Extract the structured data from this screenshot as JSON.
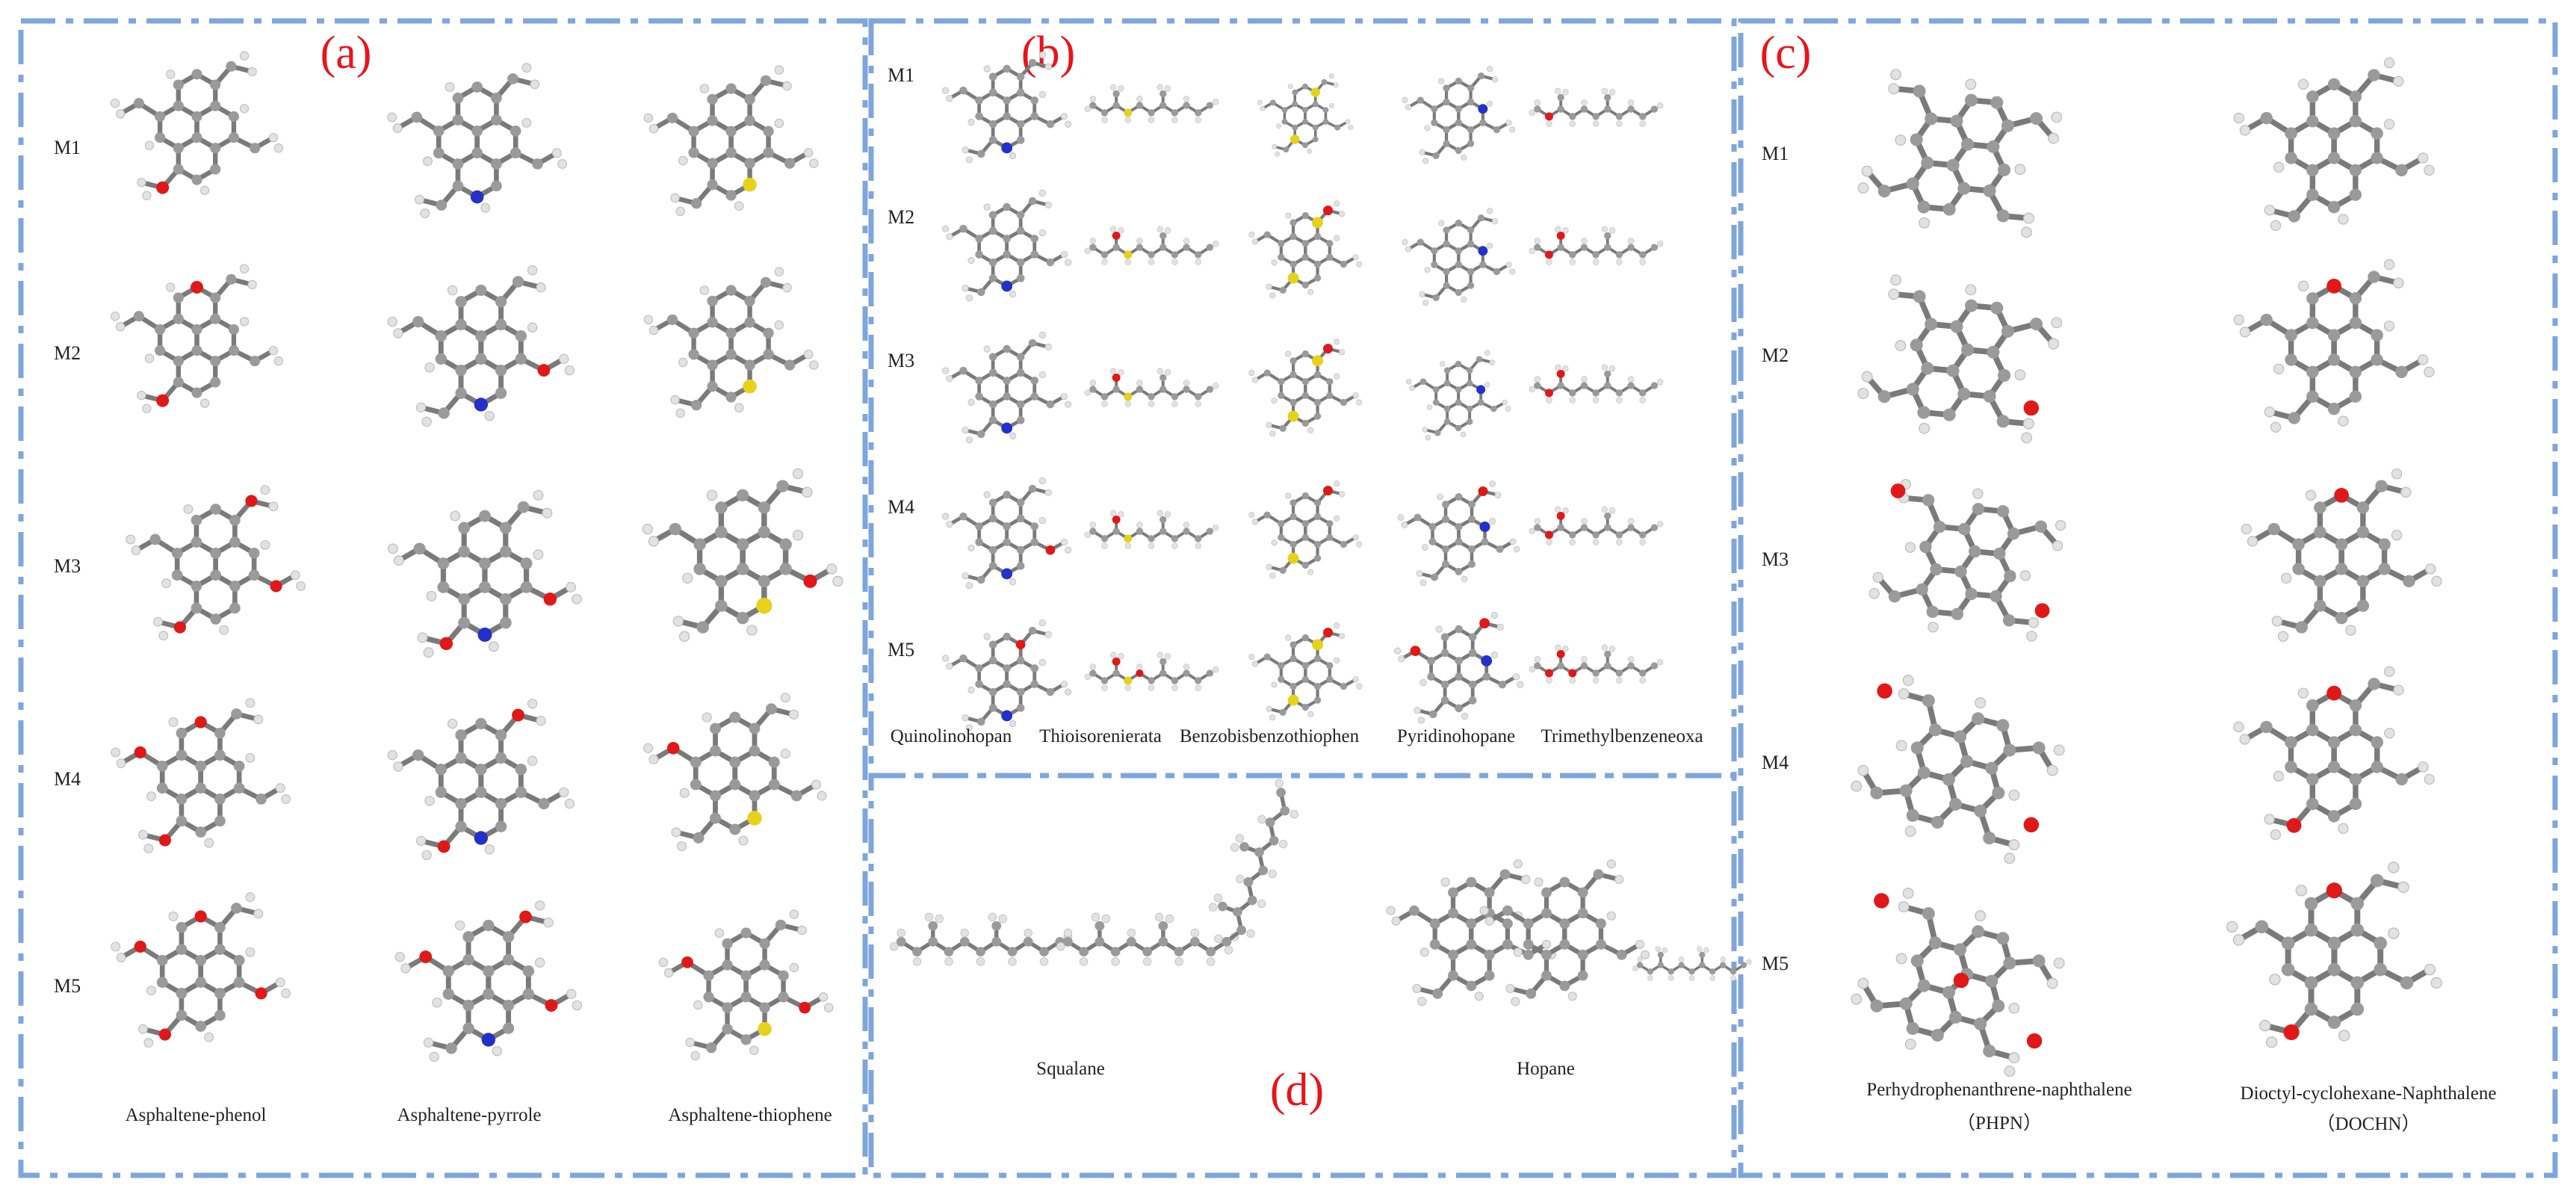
{
  "colors": {
    "border": "#7ea6dc",
    "label": "#e8141b",
    "atom": "#8c8c8c",
    "hydrogen": "#d9d9d9",
    "oxygen": "#e01818",
    "nitrogen": "#2331c8",
    "sulfur": "#e6d21a"
  },
  "panel_a": {
    "label": "(a)",
    "rows": [
      "M1",
      "M2",
      "M3",
      "M4",
      "M5"
    ],
    "columns": [
      "Asphaltene-phenol",
      "Asphaltene-pyrrole",
      "Asphaltene-thiophene"
    ]
  },
  "panel_b": {
    "label": "(b)",
    "rows": [
      "M1",
      "M2",
      "M3",
      "M4",
      "M5"
    ],
    "columns": [
      "Quinolinohopan",
      "Thioisorenierata",
      "Benzobisbenzothiophen",
      "Pyridinohopane",
      "Trimethylbenzeneoxa"
    ]
  },
  "panel_c": {
    "label": "(c)",
    "rows": [
      "M1",
      "M2",
      "M3",
      "M4",
      "M5"
    ],
    "columns": [
      {
        "name": "Perhydrophenanthrene-naphthalene",
        "abbr": "（PHPN）"
      },
      {
        "name": "Dioctyl-cyclohexane-Naphthalene",
        "abbr": "（DOCHN）"
      }
    ]
  },
  "panel_d": {
    "label": "(d)",
    "columns": [
      "Squalane",
      "Hopane"
    ]
  }
}
